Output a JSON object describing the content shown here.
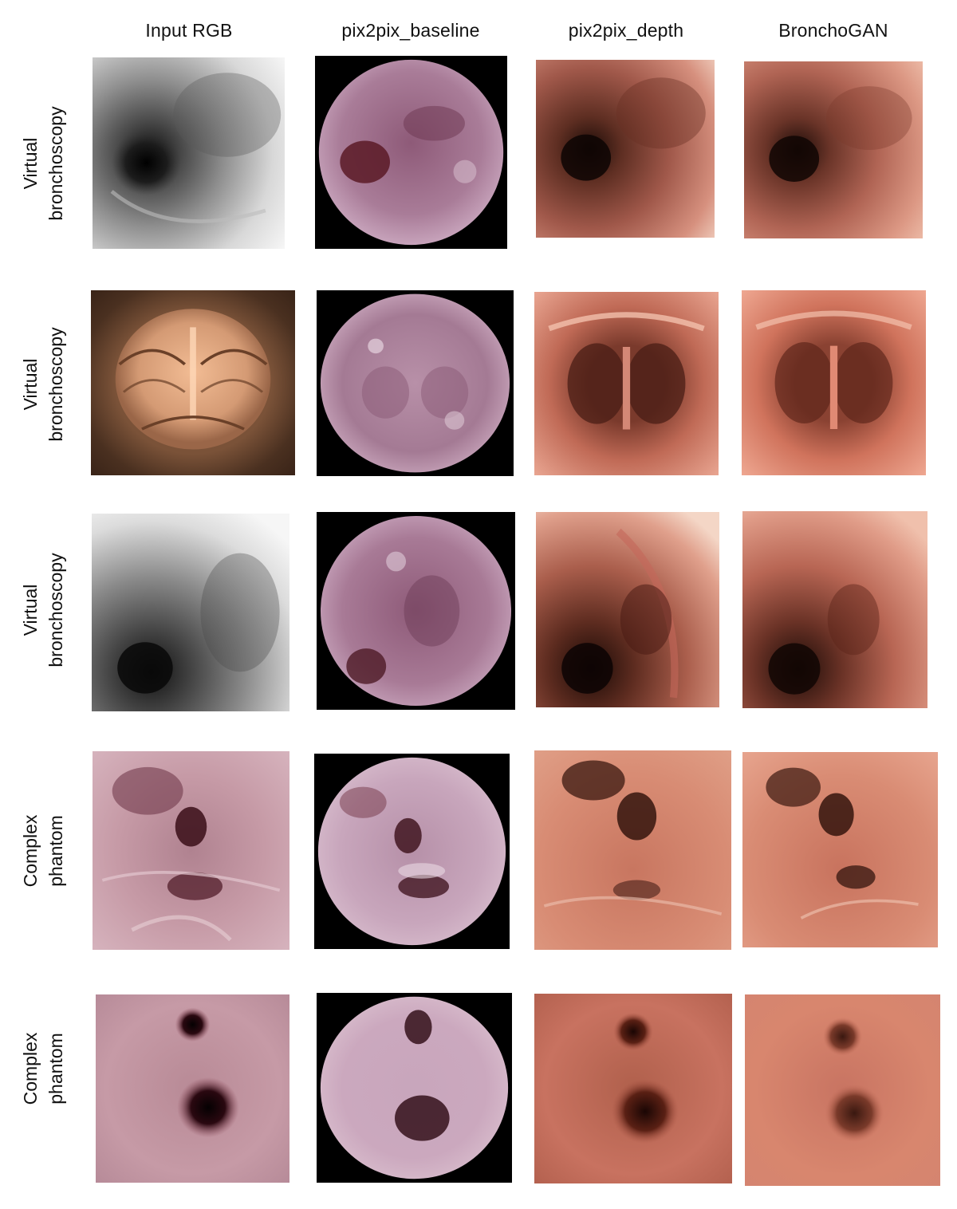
{
  "columns": [
    "Input RGB",
    "pix2pix_baseline",
    "pix2pix_depth",
    "BronchoGAN"
  ],
  "rows": [
    {
      "label_line1": "Virtual",
      "label_line2": "bronchoscopy"
    },
    {
      "label_line1": "Virtual",
      "label_line2": "bronchoscopy"
    },
    {
      "label_line1": "Virtual",
      "label_line2": "bronchoscopy"
    },
    {
      "label_line1": "Complex",
      "label_line2": "phantom"
    },
    {
      "label_line1": "Complex",
      "label_line2": "phantom"
    }
  ],
  "images": [
    [
      "virtual-grey-airway-image",
      "baseline-pink-circle-image",
      "depth-red-airway-image",
      "bronchogan-red-airway-image"
    ],
    [
      "virtual-tan-carina-image",
      "baseline-pink-circle-image",
      "depth-red-carina-image",
      "bronchogan-red-carina-image"
    ],
    [
      "virtual-grey-airway-image",
      "baseline-pink-circle-image",
      "depth-red-airway-image",
      "bronchogan-red-airway-image"
    ],
    [
      "phantom-pink-branches-image",
      "baseline-pink-circle-image",
      "depth-red-branches-image",
      "bronchogan-red-branches-image"
    ],
    [
      "phantom-pink-two-holes-image",
      "baseline-pink-circle-image",
      "depth-red-two-holes-image",
      "bronchogan-red-two-holes-image"
    ]
  ]
}
